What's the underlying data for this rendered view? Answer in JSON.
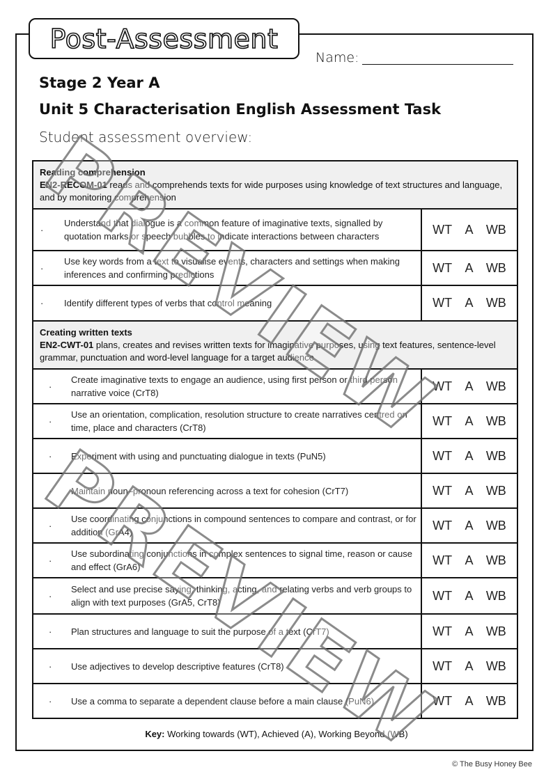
{
  "title": "Post-Assessment",
  "name_label": "Name:",
  "stage": "Stage 2 Year A",
  "unit": "Unit 5 Characterisation English Assessment Task",
  "overview": "Student assessment overview:",
  "rating_labels": [
    "WT",
    "A",
    "WB"
  ],
  "sections": [
    {
      "heading": "Reading comprehension",
      "code": "EN2-RECOM-01",
      "outcome": "reads and comprehends texts for wide purposes using knowledge of text structures and language, and by monitoring comprehension",
      "items": [
        "Understand that dialogue is a common feature of imaginative texts, signalled by quotation marks or speech bubbles to indicate interactions between characters",
        "Use key words from a text to visualise events, characters and settings when making inferences and confirming predictions",
        "Identify different types of verbs that control meaning"
      ]
    },
    {
      "heading": "Creating written texts",
      "code": "EN2-CWT-01",
      "outcome": "plans, creates and revises written texts for imaginative purposes, using text features, sentence-level grammar, punctuation and word-level language for a target audience",
      "items": [
        "Create imaginative texts to engage an audience, using first person or third person narrative voice (CrT8)",
        "Use an orientation, complication, resolution structure to create narratives centred on time, place and characters (CrT8)",
        "Experiment with using and punctuating dialogue in texts (PuN5)",
        "Maintain noun–pronoun referencing across a text for cohesion (CrT7)",
        "Use coordinating conjunctions in compound sentences to compare and contrast, or for addition (GrA4)",
        "Use subordinating conjunctions in complex sentences to signal time, reason or cause and effect (GrA6)",
        "Select and use precise saying, thinking, acting, and relating verbs and verb groups to align with text purposes (GrA5, CrT8)",
        "Plan structures and language to suit the purpose of a text (CrT7)",
        "Use adjectives to develop descriptive features (CrT8)",
        "Use a comma to separate a dependent clause before a main clause (PuN6)"
      ]
    }
  ],
  "key_label": "Key:",
  "key_text": "Working towards (WT), Achieved (A), Working Beyond (WB)",
  "copyright": "© The Busy Honey Bee",
  "watermark": "PREVIEW"
}
